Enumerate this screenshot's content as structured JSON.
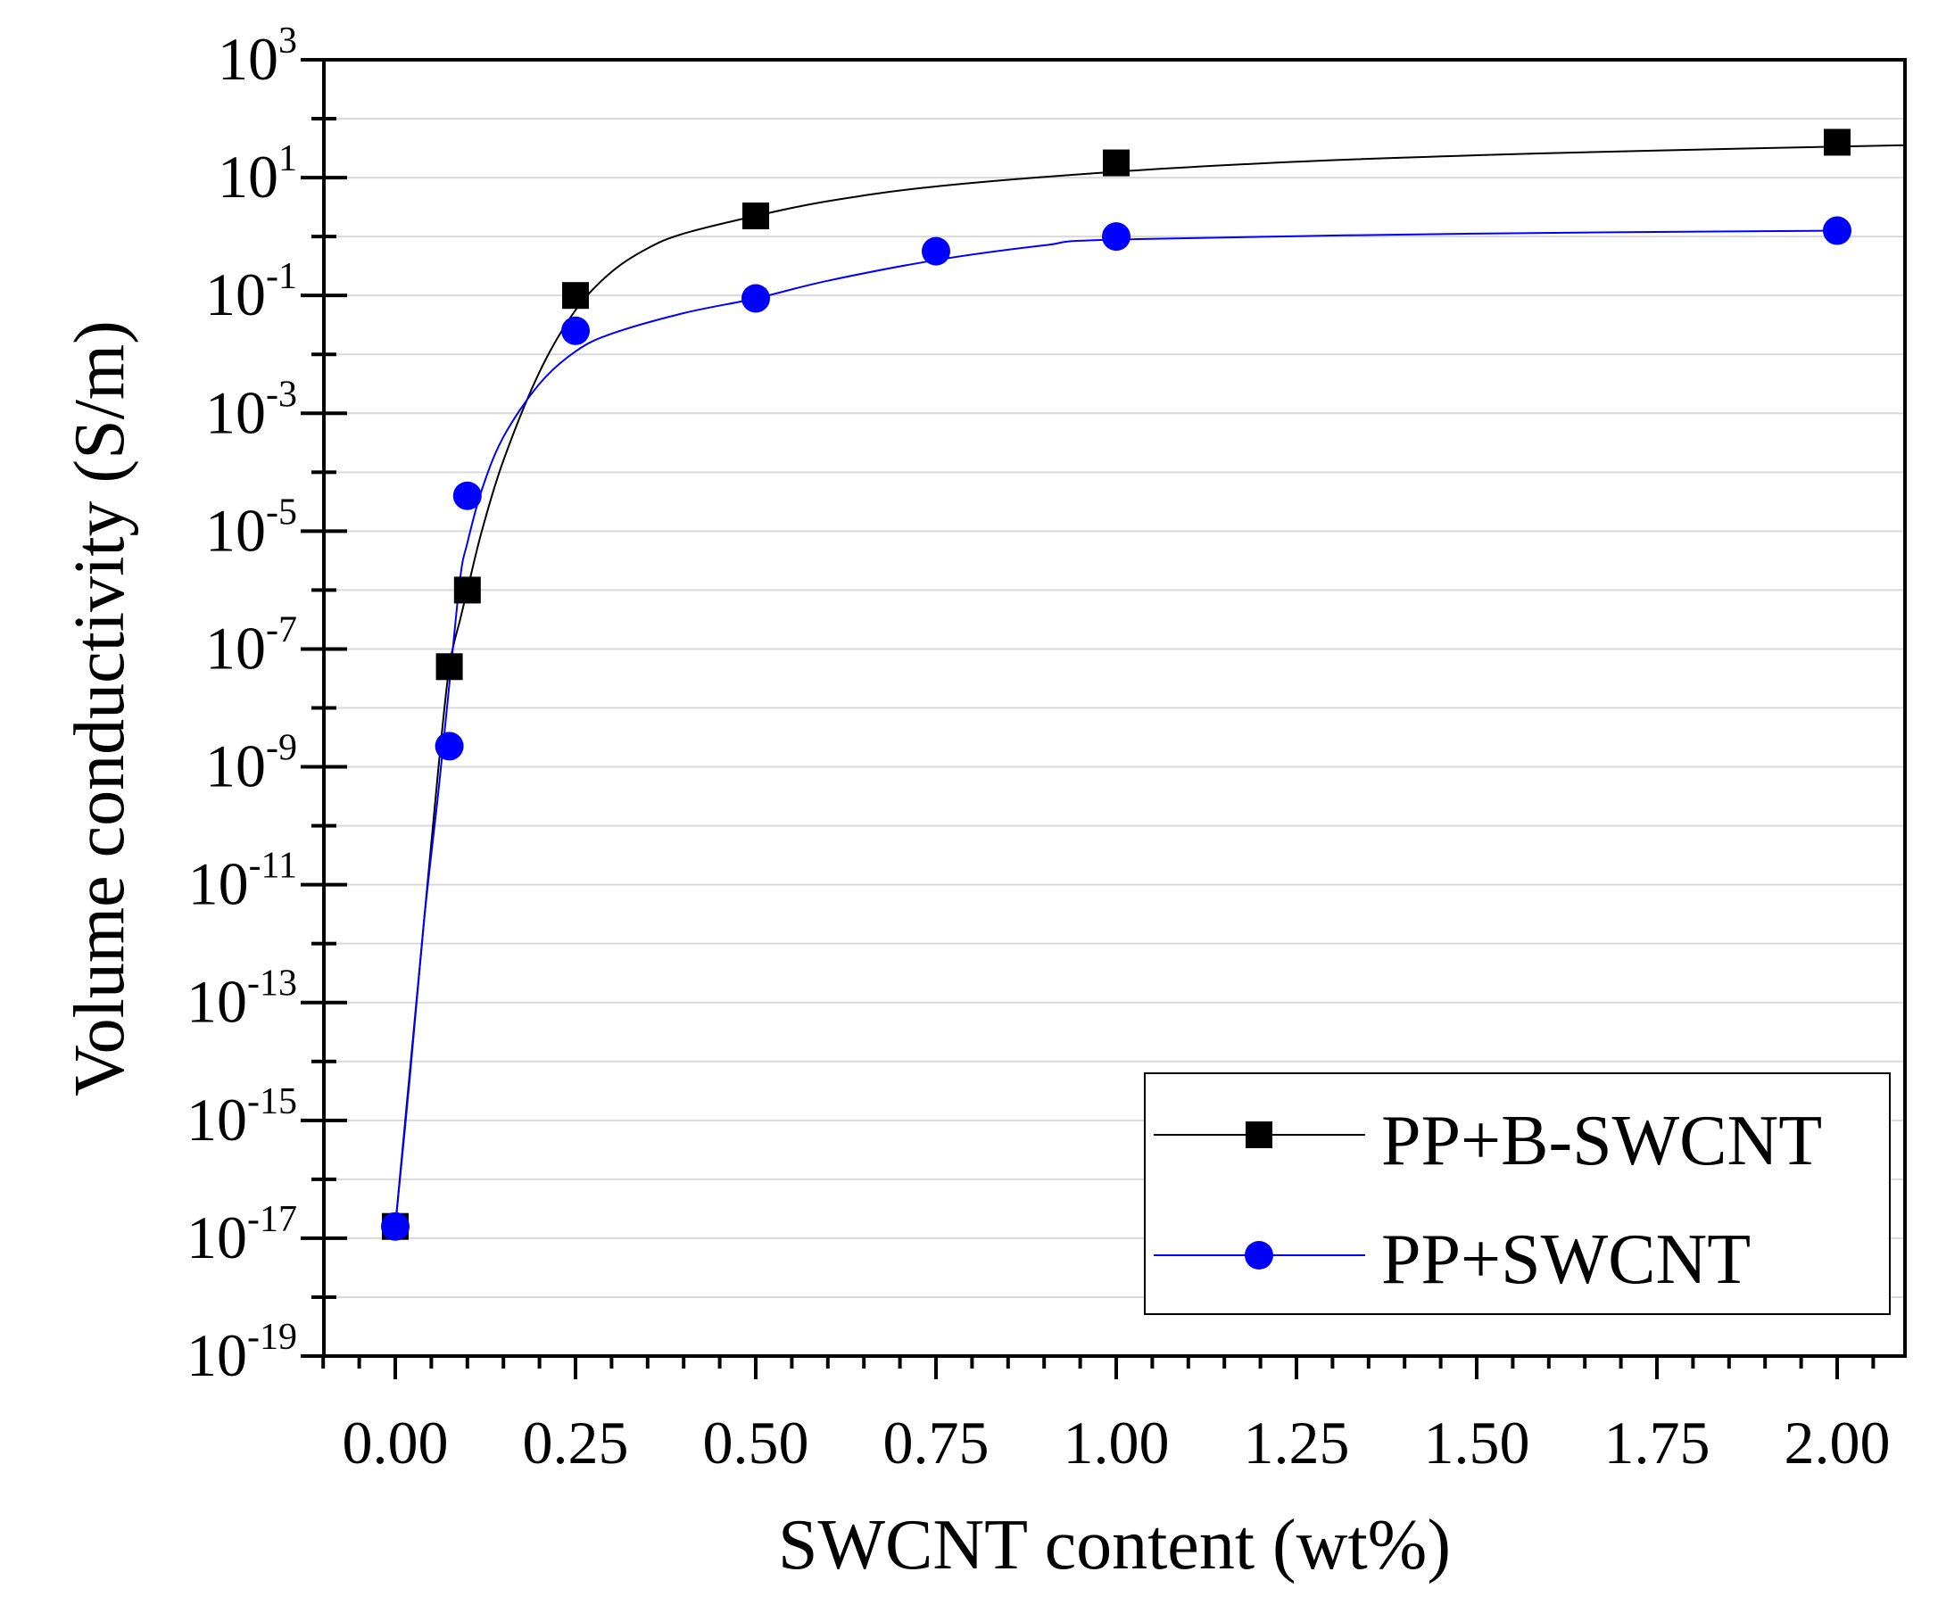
{
  "chart_data": {
    "type": "scatter",
    "xlabel": "SWCNT content (wt%)",
    "ylabel": "Volume conductivity (S/m)",
    "xlim": [
      -0.1,
      2.1
    ],
    "ylog": true,
    "ylim_exp": [
      -19,
      3
    ],
    "x_ticks": [
      0.0,
      0.25,
      0.5,
      0.75,
      1.0,
      1.25,
      1.5,
      1.75,
      2.0
    ],
    "x_tick_labels": [
      "0.00",
      "0.25",
      "0.50",
      "0.75",
      "1.00",
      "1.25",
      "1.50",
      "1.75",
      "2.00"
    ],
    "y_tick_exps": [
      3,
      1,
      -1,
      -3,
      -5,
      -7,
      -9,
      -11,
      -13,
      -15,
      -17,
      -19
    ],
    "y_tick_labels": [
      {
        "base": "10",
        "exp": "3"
      },
      {
        "base": "10",
        "exp": "1"
      },
      {
        "base": "10",
        "exp": "-1"
      },
      {
        "base": "10",
        "exp": "-3"
      },
      {
        "base": "10",
        "exp": "-5"
      },
      {
        "base": "10",
        "exp": "-7"
      },
      {
        "base": "10",
        "exp": "-9"
      },
      {
        "base": "10",
        "exp": "-11"
      },
      {
        "base": "10",
        "exp": "-13"
      },
      {
        "base": "10",
        "exp": "-15"
      },
      {
        "base": "10",
        "exp": "-17"
      },
      {
        "base": "10",
        "exp": "-19"
      }
    ],
    "grid": "horizontal",
    "legend_position": "bottom-right",
    "series": [
      {
        "name": "PP+B-SWCNT",
        "marker": "square",
        "color": "#000000",
        "x": [
          0.0,
          0.075,
          0.1,
          0.25,
          0.5,
          1.0,
          2.0
        ],
        "y_log10": [
          -16.8,
          -7.3,
          -6.0,
          -1.0,
          0.35,
          1.25,
          1.6
        ],
        "fit_x": [
          0.0,
          0.02,
          0.04,
          0.06,
          0.075,
          0.09,
          0.1,
          0.12,
          0.15,
          0.2,
          0.25,
          0.3,
          0.35,
          0.4,
          0.5,
          0.6,
          0.75,
          1.0,
          1.25,
          1.5,
          1.75,
          2.1
        ],
        "fit_y_log10": [
          -16.8,
          -14.2,
          -11.6,
          -9.0,
          -7.3,
          -6.5,
          -6.0,
          -5.0,
          -3.8,
          -2.3,
          -1.25,
          -0.6,
          -0.2,
          0.05,
          0.35,
          0.6,
          0.85,
          1.1,
          1.27,
          1.38,
          1.46,
          1.55
        ]
      },
      {
        "name": "PP+SWCNT",
        "marker": "circle",
        "color": "#0000ff",
        "x": [
          0.0,
          0.075,
          0.1,
          0.25,
          0.5,
          0.75,
          1.0,
          2.0
        ],
        "y_log10": [
          -16.8,
          -8.65,
          -4.4,
          -1.6,
          -1.05,
          -0.25,
          0.0,
          0.1
        ],
        "fit_x": [
          0.0,
          0.02,
          0.04,
          0.06,
          0.075,
          0.09,
          0.1,
          0.12,
          0.15,
          0.2,
          0.25,
          0.3,
          0.4,
          0.5,
          0.6,
          0.75,
          0.9,
          1.0,
          1.5,
          2.0
        ],
        "fit_y_log10": [
          -16.8,
          -14.3,
          -11.6,
          -9.4,
          -7.6,
          -5.8,
          -5.2,
          -4.3,
          -3.4,
          -2.5,
          -1.95,
          -1.65,
          -1.3,
          -1.05,
          -0.75,
          -0.4,
          -0.15,
          -0.05,
          0.05,
          0.1
        ]
      }
    ]
  }
}
